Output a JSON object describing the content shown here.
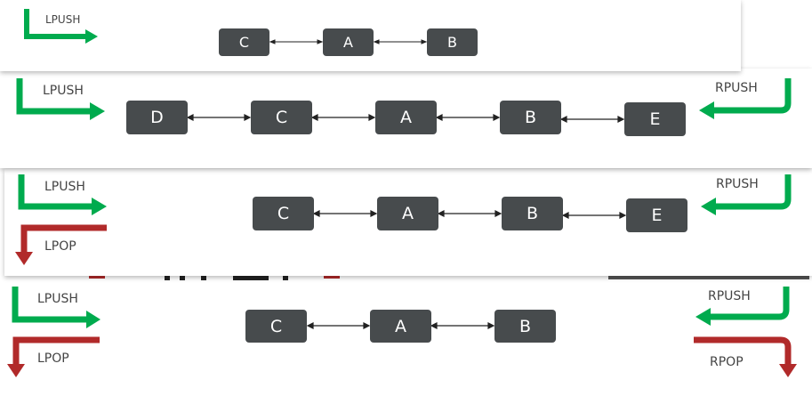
{
  "colors": {
    "node": "#474b4d",
    "push_arrow": "#00ab4e",
    "pop_arrow": "#b12a2a",
    "connector": "#222222"
  },
  "labels": {
    "lpush": "LPUSH",
    "rpush": "RPUSH",
    "lpop": "LPOP",
    "rpop": "RPOP"
  },
  "panels": [
    {
      "nodes": [
        "C",
        "A",
        "B"
      ],
      "ops": [
        "LPUSH"
      ]
    },
    {
      "nodes": [
        "D",
        "C",
        "A",
        "B",
        "E"
      ],
      "ops": [
        "LPUSH",
        "RPUSH"
      ]
    },
    {
      "nodes": [
        "C",
        "A",
        "B",
        "E"
      ],
      "ops": [
        "LPUSH",
        "LPOP",
        "RPUSH"
      ]
    },
    {
      "nodes": [
        "C",
        "A",
        "B"
      ],
      "ops": [
        "LPUSH",
        "LPOP",
        "RPUSH",
        "RPOP"
      ]
    }
  ]
}
